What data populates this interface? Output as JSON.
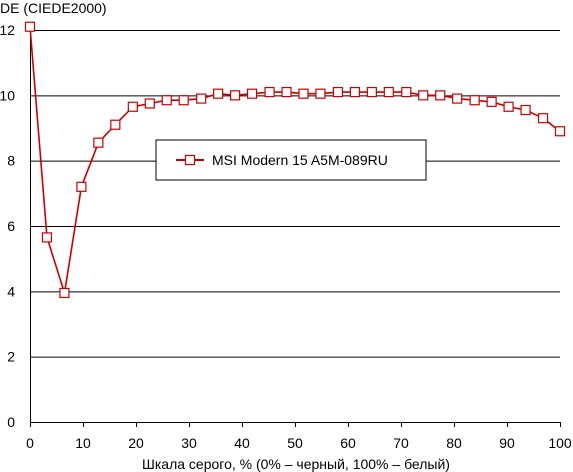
{
  "chart_data": {
    "type": "line",
    "ylabel": "DE (CIEDE2000)",
    "xlabel": "Шкала серого, % (0% – черный, 100% – белый)",
    "xlim": [
      0,
      100
    ],
    "ylim": [
      0,
      12
    ],
    "x_ticks": [
      0,
      10,
      20,
      30,
      40,
      50,
      60,
      70,
      80,
      90,
      100
    ],
    "y_ticks": [
      0,
      2,
      4,
      6,
      8,
      10,
      12
    ],
    "grid": "horizontal",
    "legend_position": "center",
    "series": [
      {
        "name": "MSI Modern 15 A5M-089RU",
        "color": "#cc0000",
        "marker": "square",
        "x": [
          0,
          3.2,
          6.5,
          9.7,
          12.9,
          16.1,
          19.4,
          22.6,
          25.8,
          29.0,
          32.3,
          35.5,
          38.7,
          41.9,
          45.2,
          48.4,
          51.6,
          54.8,
          58.1,
          61.3,
          64.5,
          67.7,
          71.0,
          74.2,
          77.4,
          80.6,
          83.9,
          87.1,
          90.3,
          93.5,
          96.8,
          100
        ],
        "y": [
          12.1,
          5.65,
          3.95,
          7.2,
          8.55,
          9.1,
          9.65,
          9.75,
          9.85,
          9.85,
          9.9,
          10.05,
          10.0,
          10.05,
          10.1,
          10.1,
          10.05,
          10.05,
          10.1,
          10.1,
          10.1,
          10.1,
          10.1,
          10.0,
          10.0,
          9.9,
          9.85,
          9.8,
          9.65,
          9.55,
          9.3,
          8.9
        ]
      }
    ]
  }
}
